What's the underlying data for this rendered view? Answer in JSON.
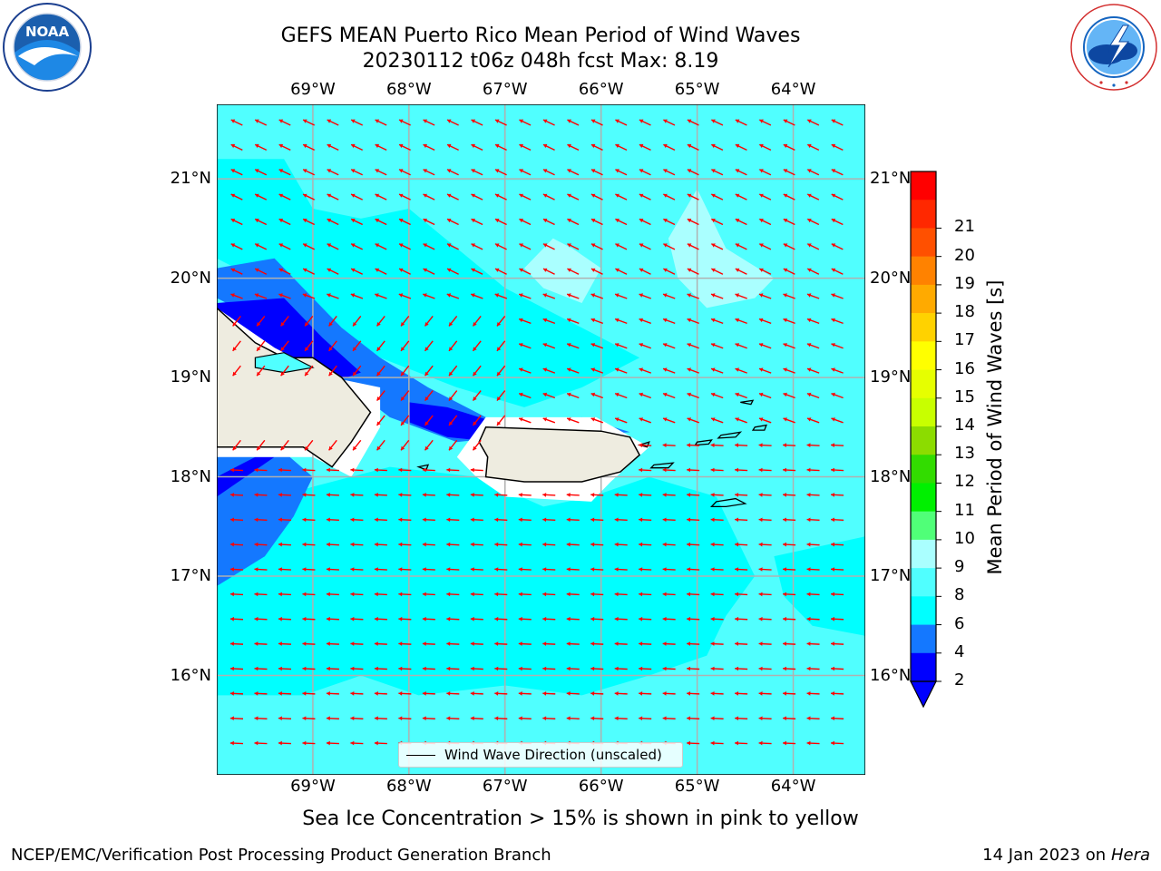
{
  "header": {
    "title_line1": "GEFS MEAN Puerto Rico Mean Period of Wind Waves",
    "title_line2": "20230112 t06z 048h fcst   Max: 8.19"
  },
  "logos": {
    "left": "noaa-logo",
    "left_text_ring": "NATIONAL OCEANIC AND ATMOSPHERIC ADMINISTRATION · U.S. DEPARTMENT OF COMMERCE",
    "left_center_text": "NOAA",
    "right": "nws-logo",
    "right_text_ring": "NATIONAL WEATHER SERVICE"
  },
  "map": {
    "lon_labels": [
      "69°W",
      "68°W",
      "67°W",
      "66°W",
      "65°W",
      "64°W"
    ],
    "lat_labels": [
      "21°N",
      "20°N",
      "19°N",
      "18°N",
      "17°N",
      "16°N"
    ],
    "lon_range": [
      -70.0,
      -63.25
    ],
    "lat_range": [
      15.0,
      21.75
    ],
    "grid": true,
    "vector_color": "#ff0000",
    "vector_direction": "mostly toward the west",
    "land_color": "#eeece0",
    "legend": {
      "label": "Wind Wave Direction (unscaled)",
      "position": "bottom-center"
    }
  },
  "colorbar": {
    "label": "Mean Period of Wind Waves [s]",
    "ticks": [
      "2",
      "4",
      "6",
      "8",
      "9",
      "10",
      "11",
      "12",
      "13",
      "14",
      "15",
      "16",
      "17",
      "18",
      "19",
      "20",
      "21"
    ],
    "colors": [
      "#0000ff",
      "#1478ff",
      "#00ffff",
      "#50ffff",
      "#aaffff",
      "#50ff78",
      "#00f000",
      "#32dc00",
      "#8cdc00",
      "#c8ff00",
      "#e6ff00",
      "#ffff00",
      "#ffd200",
      "#ffaa00",
      "#ff8200",
      "#ff5000",
      "#ff2800",
      "#ff0000"
    ],
    "under_color": "#0000ff"
  },
  "notes": {
    "sea_ice": "Sea Ice Concentration > 15% is shown in pink to yellow"
  },
  "footer": {
    "left": "NCEP/EMC/Verification Post Processing Product Generation Branch",
    "right_date": "14 Jan 2023 on ",
    "right_host": "Hera"
  }
}
